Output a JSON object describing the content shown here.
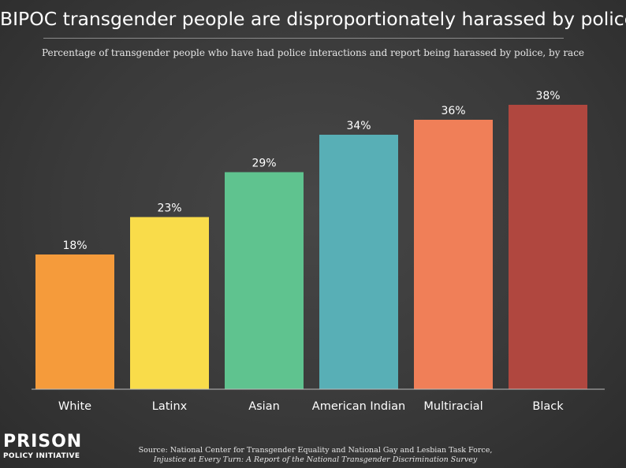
{
  "title": "BIPOC transgender people are disproportionately harassed by police",
  "subtitle": "Percentage of transgender people who have had police interactions and report being harassed by police, by race",
  "source": {
    "line1": "Source: National Center for Transgender Equality and National Gay and Lesbian Task Force,",
    "line2": "Injustice at Every Turn: A Report of the National Transgender Discrimination Survey"
  },
  "logo": {
    "top": "PRISON",
    "bottom": "POLICY INITIATIVE"
  },
  "chart_data": {
    "type": "bar",
    "categories": [
      "White",
      "Latinx",
      "Asian",
      "American Indian",
      "Multiracial",
      "Black"
    ],
    "values": [
      18,
      23,
      29,
      34,
      36,
      38
    ],
    "value_labels": [
      "18%",
      "23%",
      "29%",
      "34%",
      "36%",
      "38%"
    ],
    "colors": [
      "#f59b3b",
      "#f9dc4a",
      "#5fc38f",
      "#58afb6",
      "#f07f58",
      "#b0473f"
    ],
    "title": "BIPOC transgender people are disproportionately harassed by police",
    "xlabel": "",
    "ylabel": "",
    "ylim": [
      0,
      38
    ],
    "grid": false,
    "legend": "none"
  }
}
